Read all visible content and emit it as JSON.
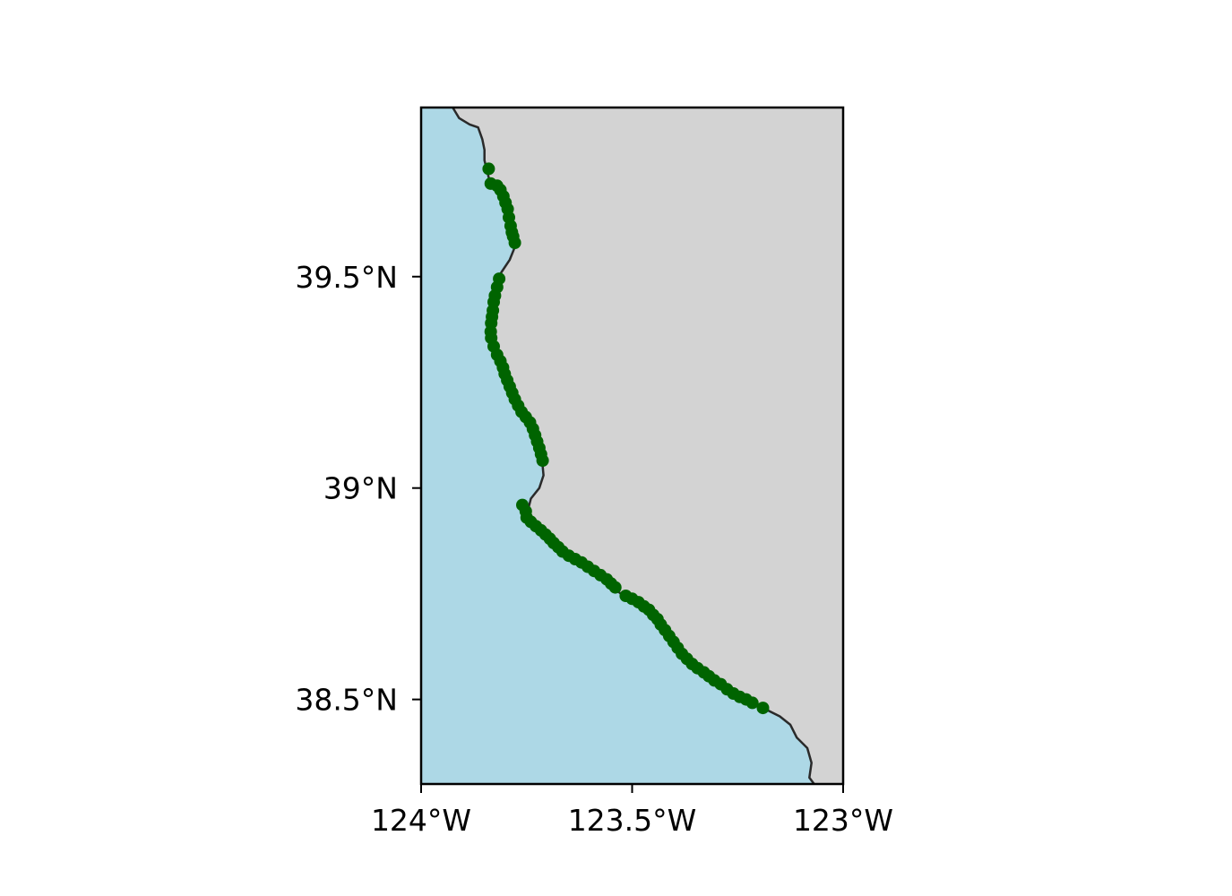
{
  "map": {
    "extent": {
      "lon": [
        -124.0,
        -123.0
      ],
      "lat": [
        38.3,
        39.9
      ]
    },
    "colors": {
      "ocean": "#add8e6",
      "land": "#d3d3d3",
      "coastline": "#2a2a2a",
      "highlight_coast": "#000000",
      "markers": "#006400",
      "frame": "#000000"
    },
    "x_ticks": [
      {
        "value": -124.0,
        "label": "124°W"
      },
      {
        "value": -123.5,
        "label": "123.5°W"
      },
      {
        "value": -123.0,
        "label": "123°W"
      }
    ],
    "y_ticks": [
      {
        "value": 39.5,
        "label": "39.5°N"
      },
      {
        "value": 39.0,
        "label": "39°N"
      },
      {
        "value": 38.5,
        "label": "38.5°N"
      }
    ],
    "coastline": [
      [
        -123.925,
        39.9
      ],
      [
        -123.91,
        39.875
      ],
      [
        -123.885,
        39.86
      ],
      [
        -123.865,
        39.853
      ],
      [
        -123.855,
        39.825
      ],
      [
        -123.85,
        39.8
      ],
      [
        -123.85,
        39.775
      ],
      [
        -123.84,
        39.735
      ],
      [
        -123.83,
        39.715
      ],
      [
        -123.81,
        39.705
      ],
      [
        -123.8,
        39.67
      ],
      [
        -123.795,
        39.63
      ],
      [
        -123.785,
        39.6
      ],
      [
        -123.778,
        39.57
      ],
      [
        -123.79,
        39.54
      ],
      [
        -123.81,
        39.51
      ],
      [
        -123.822,
        39.47
      ],
      [
        -123.83,
        39.43
      ],
      [
        -123.833,
        39.39
      ],
      [
        -123.83,
        39.35
      ],
      [
        -123.815,
        39.32
      ],
      [
        -123.805,
        39.295
      ],
      [
        -123.8,
        39.265
      ],
      [
        -123.785,
        39.225
      ],
      [
        -123.77,
        39.19
      ],
      [
        -123.755,
        39.165
      ],
      [
        -123.735,
        39.14
      ],
      [
        -123.725,
        39.115
      ],
      [
        -123.715,
        39.085
      ],
      [
        -123.71,
        39.03
      ],
      [
        -123.72,
        39.0
      ],
      [
        -123.74,
        38.975
      ],
      [
        -123.745,
        38.955
      ],
      [
        -123.76,
        38.96
      ],
      [
        -123.745,
        38.925
      ],
      [
        -123.72,
        38.905
      ],
      [
        -123.7,
        38.885
      ],
      [
        -123.685,
        38.865
      ],
      [
        -123.66,
        38.845
      ],
      [
        -123.625,
        38.825
      ],
      [
        -123.595,
        38.805
      ],
      [
        -123.57,
        38.785
      ],
      [
        -123.54,
        38.76
      ],
      [
        -123.52,
        38.745
      ],
      [
        -123.49,
        38.73
      ],
      [
        -123.46,
        38.71
      ],
      [
        -123.44,
        38.69
      ],
      [
        -123.42,
        38.66
      ],
      [
        -123.4,
        38.63
      ],
      [
        -123.375,
        38.6
      ],
      [
        -123.35,
        38.575
      ],
      [
        -123.32,
        38.555
      ],
      [
        -123.29,
        38.535
      ],
      [
        -123.255,
        38.51
      ],
      [
        -123.22,
        38.495
      ],
      [
        -123.19,
        38.48
      ],
      [
        -123.15,
        38.46
      ],
      [
        -123.125,
        38.44
      ],
      [
        -123.11,
        38.41
      ],
      [
        -123.085,
        38.385
      ],
      [
        -123.075,
        38.35
      ],
      [
        -123.08,
        38.315
      ],
      [
        -123.065,
        38.295
      ],
      [
        -123.05,
        38.282
      ],
      [
        -123.035,
        38.283
      ],
      [
        -123.02,
        38.29
      ],
      [
        -123.0,
        38.3
      ]
    ],
    "highlight_segments": [
      [
        [
          -123.84,
          39.73
        ],
        [
          -123.815,
          39.71
        ],
        [
          -123.8,
          39.66
        ],
        [
          -123.792,
          39.625
        ],
        [
          -123.785,
          39.59
        ]
      ],
      [
        [
          -123.815,
          39.49
        ],
        [
          -123.825,
          39.45
        ],
        [
          -123.832,
          39.4
        ],
        [
          -123.832,
          39.355
        ],
        [
          -123.815,
          39.32
        ],
        [
          -123.805,
          39.29
        ],
        [
          -123.8,
          39.26
        ],
        [
          -123.785,
          39.22
        ],
        [
          -123.77,
          39.19
        ],
        [
          -123.755,
          39.165
        ],
        [
          -123.735,
          39.14
        ],
        [
          -123.725,
          39.11
        ],
        [
          -123.715,
          39.075
        ]
      ],
      [
        [
          -123.755,
          38.955
        ],
        [
          -123.745,
          38.93
        ],
        [
          -123.72,
          38.905
        ],
        [
          -123.7,
          38.885
        ],
        [
          -123.685,
          38.865
        ],
        [
          -123.66,
          38.845
        ],
        [
          -123.625,
          38.825
        ],
        [
          -123.595,
          38.805
        ],
        [
          -123.57,
          38.785
        ],
        [
          -123.54,
          38.765
        ]
      ],
      [
        [
          -123.52,
          38.745
        ],
        [
          -123.49,
          38.73
        ],
        [
          -123.46,
          38.71
        ],
        [
          -123.44,
          38.69
        ],
        [
          -123.42,
          38.66
        ],
        [
          -123.4,
          38.63
        ],
        [
          -123.375,
          38.6
        ],
        [
          -123.35,
          38.575
        ],
        [
          -123.32,
          38.555
        ],
        [
          -123.29,
          38.535
        ],
        [
          -123.255,
          38.51
        ],
        [
          -123.22,
          38.495
        ],
        [
          -123.19,
          38.48
        ]
      ]
    ],
    "markers": [
      [
        -123.84,
        39.755
      ],
      [
        -123.835,
        39.72
      ],
      [
        -123.82,
        39.715
      ],
      [
        -123.812,
        39.705
      ],
      [
        -123.805,
        39.69
      ],
      [
        -123.8,
        39.675
      ],
      [
        -123.795,
        39.66
      ],
      [
        -123.792,
        39.64
      ],
      [
        -123.788,
        39.62
      ],
      [
        -123.785,
        39.605
      ],
      [
        -123.782,
        39.595
      ],
      [
        -123.778,
        39.58
      ],
      [
        -123.815,
        39.495
      ],
      [
        -123.82,
        39.475
      ],
      [
        -123.825,
        39.455
      ],
      [
        -123.828,
        39.44
      ],
      [
        -123.83,
        39.42
      ],
      [
        -123.832,
        39.405
      ],
      [
        -123.834,
        39.39
      ],
      [
        -123.835,
        39.37
      ],
      [
        -123.834,
        39.355
      ],
      [
        -123.828,
        39.335
      ],
      [
        -123.82,
        39.315
      ],
      [
        -123.812,
        39.3
      ],
      [
        -123.806,
        39.285
      ],
      [
        -123.802,
        39.27
      ],
      [
        -123.796,
        39.255
      ],
      [
        -123.79,
        39.24
      ],
      [
        -123.784,
        39.225
      ],
      [
        -123.778,
        39.21
      ],
      [
        -123.77,
        39.195
      ],
      [
        -123.762,
        39.18
      ],
      [
        -123.752,
        39.168
      ],
      [
        -123.742,
        39.155
      ],
      [
        -123.735,
        39.14
      ],
      [
        -123.73,
        39.125
      ],
      [
        -123.725,
        39.11
      ],
      [
        -123.72,
        39.095
      ],
      [
        -123.716,
        39.08
      ],
      [
        -123.712,
        39.065
      ],
      [
        -123.76,
        38.96
      ],
      [
        -123.752,
        38.945
      ],
      [
        -123.75,
        38.93
      ],
      [
        -123.74,
        38.92
      ],
      [
        -123.728,
        38.91
      ],
      [
        -123.716,
        38.9
      ],
      [
        -123.705,
        38.89
      ],
      [
        -123.695,
        38.88
      ],
      [
        -123.686,
        38.87
      ],
      [
        -123.675,
        38.86
      ],
      [
        -123.665,
        38.85
      ],
      [
        -123.65,
        38.84
      ],
      [
        -123.635,
        38.832
      ],
      [
        -123.62,
        38.824
      ],
      [
        -123.605,
        38.814
      ],
      [
        -123.59,
        38.804
      ],
      [
        -123.575,
        38.794
      ],
      [
        -123.56,
        38.784
      ],
      [
        -123.55,
        38.774
      ],
      [
        -123.54,
        38.765
      ],
      [
        -123.515,
        38.745
      ],
      [
        -123.5,
        38.738
      ],
      [
        -123.485,
        38.73
      ],
      [
        -123.472,
        38.72
      ],
      [
        -123.46,
        38.712
      ],
      [
        -123.45,
        38.7
      ],
      [
        -123.44,
        38.69
      ],
      [
        -123.432,
        38.677
      ],
      [
        -123.422,
        38.664
      ],
      [
        -123.412,
        38.65
      ],
      [
        -123.402,
        38.636
      ],
      [
        -123.392,
        38.622
      ],
      [
        -123.382,
        38.608
      ],
      [
        -123.37,
        38.596
      ],
      [
        -123.358,
        38.584
      ],
      [
        -123.345,
        38.574
      ],
      [
        -123.33,
        38.564
      ],
      [
        -123.318,
        38.555
      ],
      [
        -123.305,
        38.545
      ],
      [
        -123.29,
        38.536
      ],
      [
        -123.275,
        38.524
      ],
      [
        -123.26,
        38.514
      ],
      [
        -123.245,
        38.506
      ],
      [
        -123.23,
        38.5
      ],
      [
        -123.215,
        38.492
      ],
      [
        -123.19,
        38.48
      ]
    ]
  }
}
